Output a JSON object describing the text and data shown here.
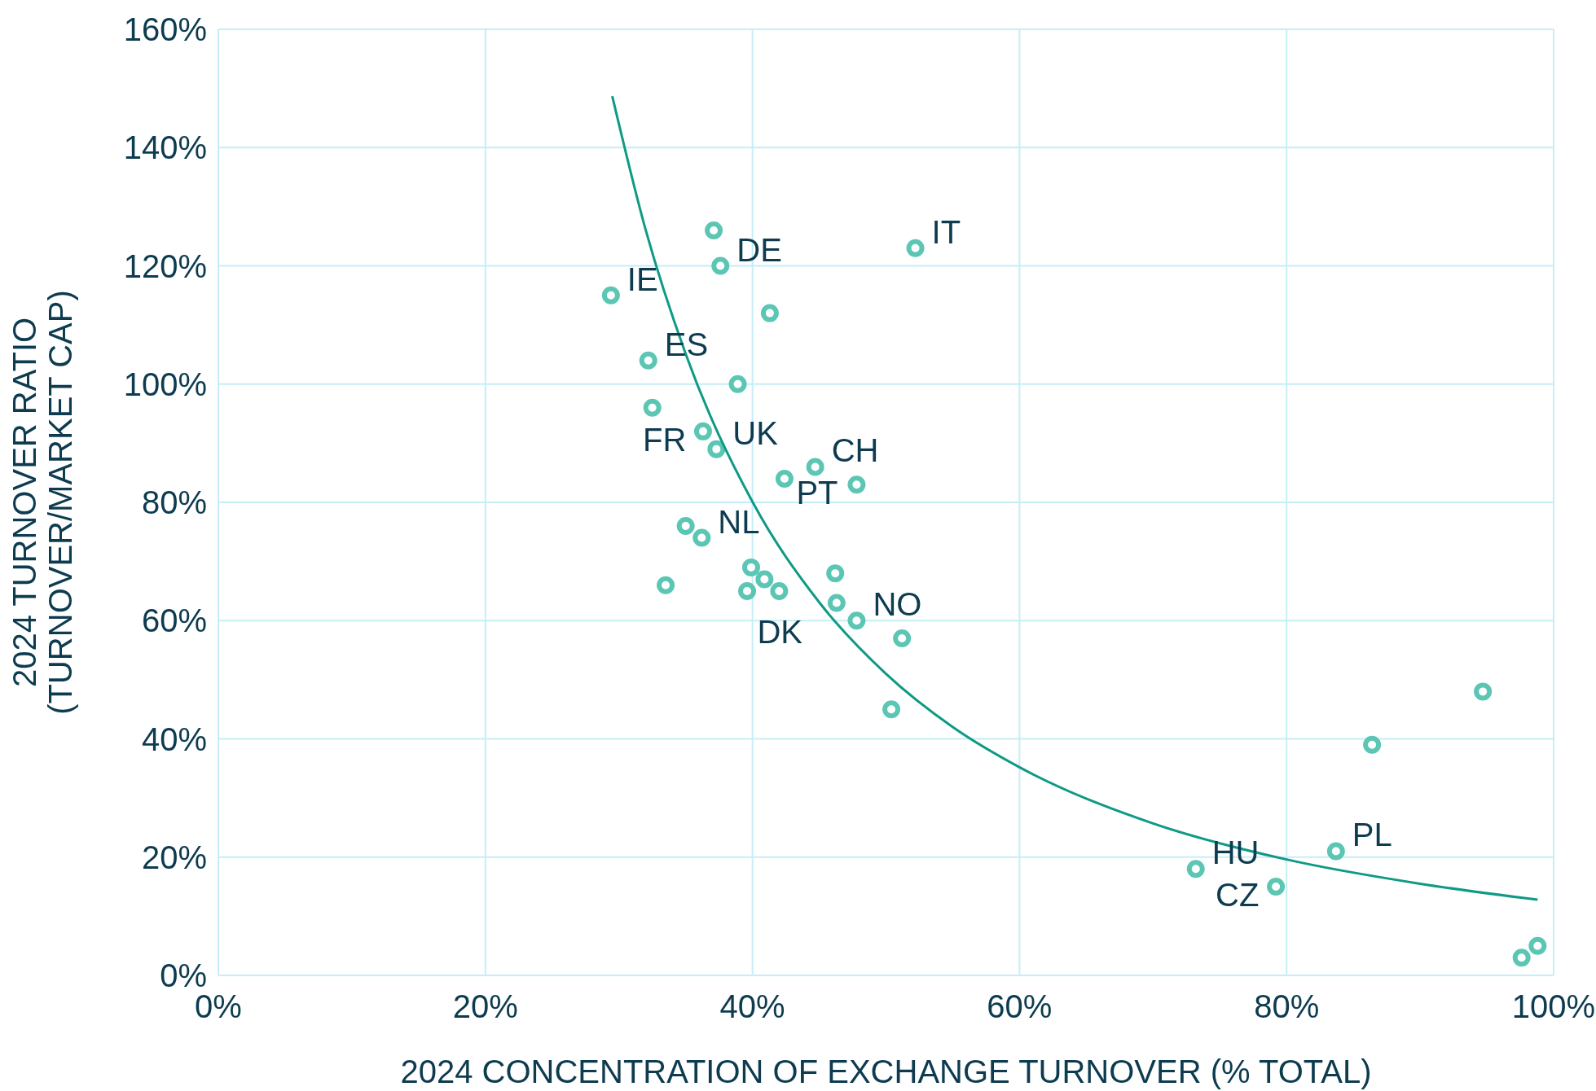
{
  "chart_data": {
    "type": "scatter",
    "xlabel": "2024 CONCENTRATION OF EXCHANGE TURNOVER (% TOTAL)",
    "ylabel": "2024 TURNOVER RATIO (TURNOVER/MARKET CAP)",
    "xlim": [
      0,
      100
    ],
    "ylim": [
      0,
      160
    ],
    "xticks": [
      {
        "value": 0,
        "label": "0%"
      },
      {
        "value": 20,
        "label": "20%"
      },
      {
        "value": 40,
        "label": "40%"
      },
      {
        "value": 60,
        "label": "60%"
      },
      {
        "value": 80,
        "label": "80%"
      },
      {
        "value": 100,
        "label": "100%"
      }
    ],
    "yticks": [
      {
        "value": 0,
        "label": "0%"
      },
      {
        "value": 20,
        "label": "20%"
      },
      {
        "value": 40,
        "label": "40%"
      },
      {
        "value": 60,
        "label": "60%"
      },
      {
        "value": 80,
        "label": "80%"
      },
      {
        "value": 100,
        "label": "100%"
      },
      {
        "value": 120,
        "label": "120%"
      },
      {
        "value": 140,
        "label": "140%"
      },
      {
        "value": 160,
        "label": "160%"
      }
    ],
    "grid": true,
    "series": [
      {
        "color": "#5cc6b4",
        "marker": "circle",
        "x": [
          37.1,
          37.6,
          52.2,
          29.4,
          41.3,
          32.2,
          38.9,
          32.5,
          36.3,
          37.3,
          42.4,
          44.7,
          47.8,
          35.0,
          36.2,
          33.5,
          39.9,
          40.9,
          39.6,
          42.0,
          46.2,
          46.3,
          47.8,
          51.2,
          50.4,
          94.7,
          86.4,
          83.7,
          73.2,
          79.2,
          97.6,
          98.8
        ],
        "values": [
          126,
          120,
          123,
          115,
          112,
          104,
          100,
          96,
          92,
          89,
          84,
          86,
          83,
          76,
          74,
          66,
          69,
          67,
          65,
          65,
          68,
          63,
          60,
          57,
          45,
          48,
          39,
          21,
          18,
          15,
          3,
          5
        ]
      },
      {
        "type": "line",
        "color": "#0e9a85",
        "x": [
          29.5,
          32,
          35,
          40,
          45,
          50,
          55,
          60,
          70,
          80,
          90,
          98.8
        ],
        "values": [
          148.7,
          126.1,
          105.1,
          80.1,
          63.1,
          51.0,
          42.0,
          35.2,
          25.7,
          19.6,
          15.5,
          12.8
        ]
      }
    ],
    "annotations": [
      {
        "text": "IT",
        "x": 52.2,
        "y": 123
      },
      {
        "text": "DE",
        "x": 37.6,
        "y": 120
      },
      {
        "text": "IE",
        "x": 29.4,
        "y": 115
      },
      {
        "text": "ES",
        "x": 32.2,
        "y": 104
      },
      {
        "text": "UK",
        "x": 37.3,
        "y": 89
      },
      {
        "text": "FR",
        "x": 36.3,
        "y": 92
      },
      {
        "text": "CH",
        "x": 44.7,
        "y": 86
      },
      {
        "text": "PT",
        "x": 47.8,
        "y": 83
      },
      {
        "text": "NL",
        "x": 36.2,
        "y": 74
      },
      {
        "text": "NO",
        "x": 47.8,
        "y": 60
      },
      {
        "text": "DK",
        "x": 42.0,
        "y": 65
      },
      {
        "text": "PL",
        "x": 83.7,
        "y": 21
      },
      {
        "text": "HU",
        "x": 73.2,
        "y": 18
      },
      {
        "text": "CZ",
        "x": 79.2,
        "y": 15
      }
    ]
  }
}
